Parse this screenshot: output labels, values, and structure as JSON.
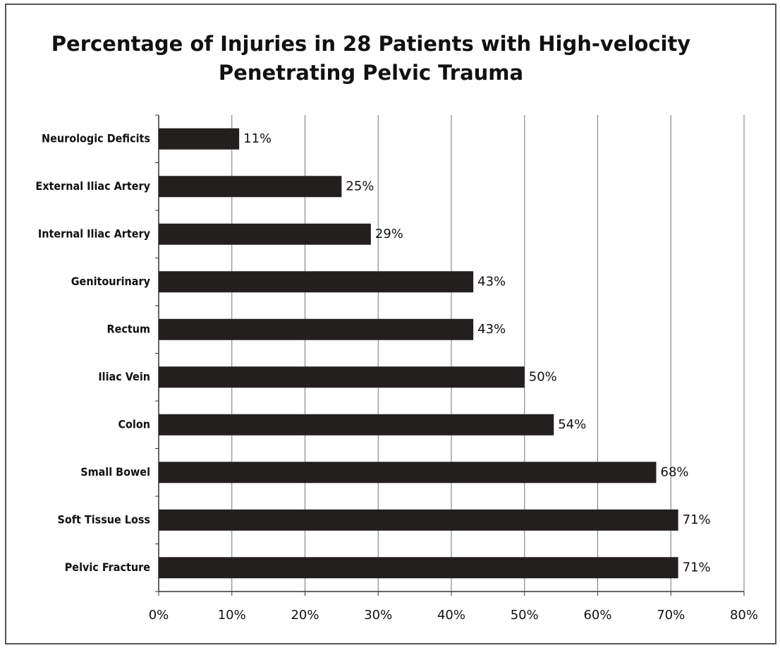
{
  "chart_data": {
    "type": "barh",
    "title": [
      "Percentage of Injuries in 28 Patients with High-velocity",
      "Penetrating Pelvic Trauma"
    ],
    "categories": [
      "Neurologic Deficits",
      "External Iliac Artery",
      "Internal Iliac Artery",
      "Genitourinary",
      "Rectum",
      "Iliac Vein",
      "Colon",
      "Small Bowel",
      "Soft Tissue Loss",
      "Pelvic Fracture"
    ],
    "values": [
      11,
      25,
      29,
      43,
      43,
      50,
      54,
      68,
      71,
      71
    ],
    "value_labels": [
      "11%",
      "25%",
      "29%",
      "43%",
      "43%",
      "50%",
      "54%",
      "68%",
      "71%",
      "71%"
    ],
    "color": "#231f1e",
    "xlim": [
      0,
      80
    ],
    "xticks": [
      {
        "value": 0,
        "label": "0%"
      },
      {
        "value": 10,
        "label": "10%"
      },
      {
        "value": 20,
        "label": "20%"
      },
      {
        "value": 30,
        "label": "30%"
      },
      {
        "value": 40,
        "label": "40%"
      },
      {
        "value": 50,
        "label": "50%"
      },
      {
        "value": 60,
        "label": "60%"
      },
      {
        "value": 70,
        "label": "70%"
      },
      {
        "value": 80,
        "label": "80%"
      }
    ],
    "grid": true
  }
}
